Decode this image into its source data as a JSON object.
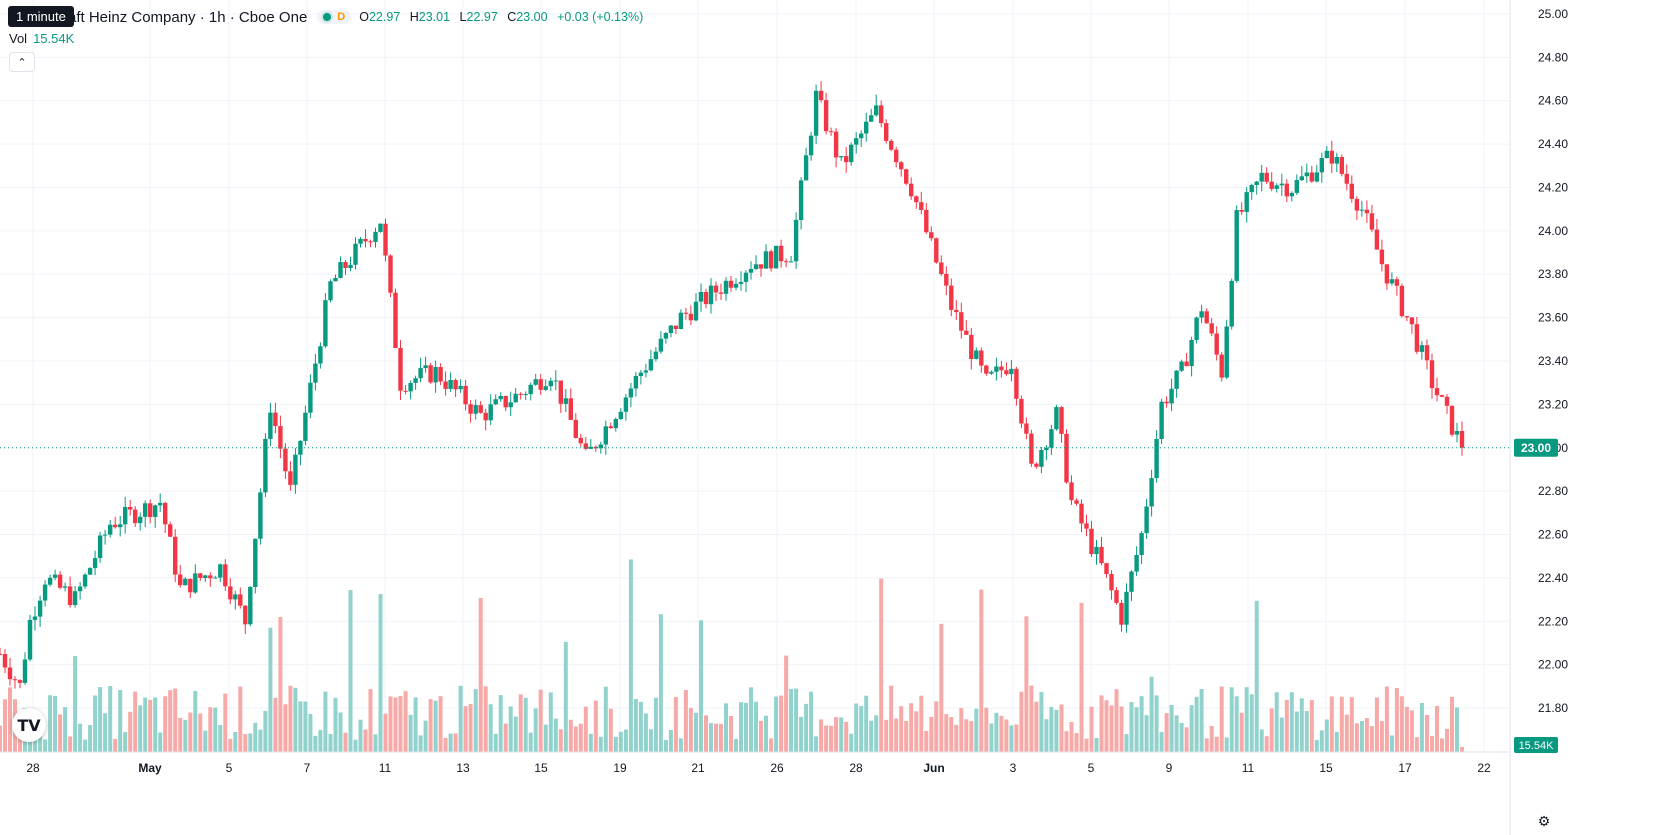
{
  "legend": {
    "tooltip": "1 minute",
    "symbol": "aft Heinz Company · 1h · Cboe One",
    "delay_badge": "D",
    "open_label": "O",
    "open": "22.97",
    "high_label": "H",
    "high": "23.01",
    "low_label": "L",
    "low": "22.97",
    "close_label": "C",
    "close": "23.00",
    "change": "+0.03 (+0.13%)",
    "vol_label": "Vol",
    "vol_value": "15.54K",
    "collapse_icon": "chevron-up-icon"
  },
  "colors": {
    "up": "#089981",
    "down": "#f23645",
    "up_vol": "#92d2cc",
    "down_vol": "#f7a9a7",
    "grid": "#f0f3fa"
  },
  "chart_data": {
    "type": "candlestick",
    "y_axis_ticks": [
      "25.00",
      "24.80",
      "24.60",
      "24.40",
      "24.20",
      "24.00",
      "23.80",
      "23.60",
      "23.40",
      "23.20",
      "23.00",
      "22.80",
      "22.60",
      "22.40",
      "22.20",
      "22.00",
      "21.80"
    ],
    "ylim": [
      21.7,
      25.0
    ],
    "x_axis_ticks": [
      "28",
      "May",
      "5",
      "7",
      "11",
      "13",
      "15",
      "19",
      "21",
      "26",
      "28",
      "Jun",
      "3",
      "5",
      "9",
      "11",
      "15",
      "17",
      "22"
    ],
    "last_price": "23.00",
    "last_volume": "15.54K",
    "anchors": [
      {
        "bar": 0,
        "price": 22.05
      },
      {
        "bar": 4,
        "price": 21.9
      },
      {
        "bar": 6,
        "price": 22.2
      },
      {
        "bar": 9,
        "price": 22.4
      },
      {
        "bar": 15,
        "price": 22.3
      },
      {
        "bar": 22,
        "price": 22.65
      },
      {
        "bar": 32,
        "price": 22.75
      },
      {
        "bar": 36,
        "price": 22.35
      },
      {
        "bar": 44,
        "price": 22.45
      },
      {
        "bar": 49,
        "price": 22.2
      },
      {
        "bar": 54,
        "price": 23.2
      },
      {
        "bar": 58,
        "price": 22.8
      },
      {
        "bar": 66,
        "price": 23.75
      },
      {
        "bar": 76,
        "price": 24.05
      },
      {
        "bar": 80,
        "price": 23.3
      },
      {
        "bar": 87,
        "price": 23.35
      },
      {
        "bar": 96,
        "price": 23.15
      },
      {
        "bar": 104,
        "price": 23.25
      },
      {
        "bar": 110,
        "price": 23.35
      },
      {
        "bar": 117,
        "price": 22.95
      },
      {
        "bar": 128,
        "price": 23.35
      },
      {
        "bar": 136,
        "price": 23.6
      },
      {
        "bar": 150,
        "price": 23.85
      },
      {
        "bar": 158,
        "price": 23.9
      },
      {
        "bar": 163,
        "price": 24.62
      },
      {
        "bar": 168,
        "price": 24.3
      },
      {
        "bar": 175,
        "price": 24.55
      },
      {
        "bar": 182,
        "price": 24.2
      },
      {
        "bar": 190,
        "price": 23.65
      },
      {
        "bar": 197,
        "price": 23.3
      },
      {
        "bar": 202,
        "price": 23.4
      },
      {
        "bar": 206,
        "price": 22.9
      },
      {
        "bar": 211,
        "price": 23.15
      },
      {
        "bar": 214,
        "price": 22.75
      },
      {
        "bar": 220,
        "price": 22.45
      },
      {
        "bar": 224,
        "price": 22.22
      },
      {
        "bar": 228,
        "price": 22.6
      },
      {
        "bar": 232,
        "price": 23.2
      },
      {
        "bar": 236,
        "price": 23.35
      },
      {
        "bar": 240,
        "price": 23.65
      },
      {
        "bar": 244,
        "price": 23.35
      },
      {
        "bar": 247,
        "price": 24.05
      },
      {
        "bar": 252,
        "price": 24.25
      },
      {
        "bar": 258,
        "price": 24.2
      },
      {
        "bar": 266,
        "price": 24.35
      },
      {
        "bar": 272,
        "price": 24.1
      },
      {
        "bar": 276,
        "price": 23.85
      },
      {
        "bar": 282,
        "price": 23.55
      },
      {
        "bar": 286,
        "price": 23.3
      },
      {
        "bar": 292,
        "price": 23.0
      }
    ],
    "total_bars": 293
  }
}
